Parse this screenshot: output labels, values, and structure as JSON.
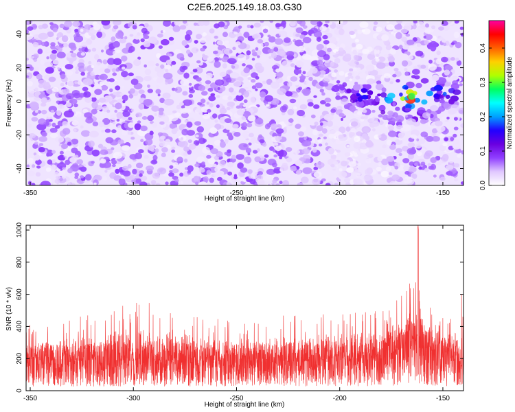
{
  "figure": {
    "title": "C2E6.2025.149.18.03.G30"
  },
  "chart_data": [
    {
      "type": "heatmap",
      "xlabel": "Height of straight line (km)",
      "ylabel": "Frequency (Hz)",
      "xlim": [
        -352,
        -140
      ],
      "ylim": [
        -50,
        48
      ],
      "x_ticks": [
        -350,
        -300,
        -250,
        -200,
        -150
      ],
      "y_ticks": [
        -40,
        -20,
        0,
        20,
        40
      ],
      "colorbar": {
        "label": "Normalized spectral amplitude",
        "range": [
          0,
          0.48
        ],
        "ticks": [
          0.0,
          0.1,
          0.2,
          0.3,
          0.4
        ],
        "colormap": [
          "#ffffff",
          "#e0c8ff",
          "#9040ff",
          "#6a00e0",
          "#2200ff",
          "#00a0ff",
          "#00ffff",
          "#00ff60",
          "#b0ff00",
          "#ffd000",
          "#ff6000",
          "#ff0000",
          "#ff00a0"
        ]
      },
      "background_level": 0.05,
      "hotspots": [
        {
          "x": -165,
          "y": 2,
          "value": 0.42
        },
        {
          "x": -160,
          "y": 4,
          "value": 0.2
        },
        {
          "x": -170,
          "y": 5,
          "value": 0.18
        },
        {
          "x": -175,
          "y": 3,
          "value": 0.15
        },
        {
          "x": -155,
          "y": 5,
          "value": 0.16
        },
        {
          "x": -148,
          "y": 5,
          "value": 0.14
        },
        {
          "x": -190,
          "y": 3,
          "value": 0.13
        },
        {
          "x": -180,
          "y": -2,
          "value": 0.12
        },
        {
          "x": -163,
          "y": -5,
          "value": 0.11
        }
      ]
    },
    {
      "type": "line",
      "xlabel": "Height of straight line (km)",
      "ylabel": "SNR (10 * v/v)",
      "xlim": [
        -352,
        -140
      ],
      "ylim": [
        0,
        1030
      ],
      "x_ticks": [
        -350,
        -300,
        -250,
        -200,
        -150
      ],
      "y_ticks": [
        0,
        200,
        400,
        600,
        800,
        1000
      ],
      "series": [
        {
          "color": "#f03030",
          "envelope_x": [
            -352,
            -330,
            -300,
            -280,
            -250,
            -220,
            -200,
            -180,
            -170,
            -165,
            -162,
            -160,
            -155,
            -145,
            -140
          ],
          "envelope_median": [
            160,
            170,
            180,
            175,
            170,
            175,
            180,
            190,
            230,
            260,
            280,
            240,
            210,
            180,
            175
          ],
          "envelope_peak": [
            420,
            450,
            570,
            510,
            460,
            480,
            500,
            510,
            620,
            700,
            1030,
            620,
            520,
            480,
            650
          ]
        }
      ]
    }
  ]
}
